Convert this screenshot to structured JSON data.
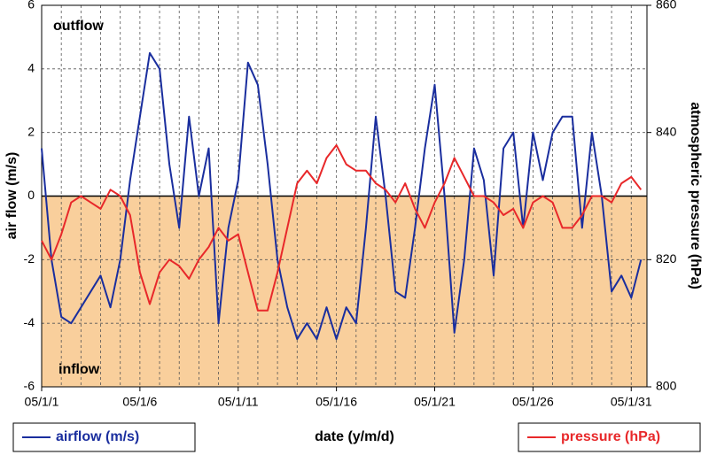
{
  "chart_data": {
    "type": "line",
    "x_label": "date (y/m/d)",
    "y_label": "air flow (m/s)",
    "y2_label": "atmospheric pressure (hPa)",
    "annotations": [
      "outflow",
      "inflow"
    ],
    "legend": "bottom",
    "grid": true,
    "shade_below_zero": "#f9cf9c",
    "xlim": [
      1,
      31.8
    ],
    "xticks": [
      {
        "value": 1,
        "label": "05/1/1"
      },
      {
        "value": 6,
        "label": "05/1/6"
      },
      {
        "value": 11,
        "label": "05/1/11"
      },
      {
        "value": 16,
        "label": "05/1/16"
      },
      {
        "value": 21,
        "label": "05/1/21"
      },
      {
        "value": 26,
        "label": "05/1/26"
      },
      {
        "value": 31,
        "label": "05/1/31"
      }
    ],
    "ylim": [
      -6,
      6
    ],
    "yticks": [
      -6,
      -4,
      -2,
      0,
      2,
      4,
      6
    ],
    "y2lim": [
      800,
      860
    ],
    "y2ticks": [
      800,
      820,
      840,
      860
    ],
    "x": [
      1,
      1.5,
      2,
      2.5,
      3,
      3.5,
      4,
      4.5,
      5,
      5.5,
      6,
      6.5,
      7,
      7.5,
      8,
      8.5,
      9,
      9.5,
      10,
      10.5,
      11,
      11.5,
      12,
      12.5,
      13,
      13.5,
      14,
      14.5,
      15,
      15.5,
      16,
      16.5,
      17,
      17.5,
      18,
      18.5,
      19,
      19.5,
      20,
      20.5,
      21,
      21.5,
      22,
      22.5,
      23,
      23.5,
      24,
      24.5,
      25,
      25.5,
      26,
      26.5,
      27,
      27.5,
      28,
      28.5,
      29,
      29.5,
      30,
      30.5,
      31,
      31.5
    ],
    "series": [
      {
        "name": "airflow (m/s)",
        "color": "#1a2e9e",
        "axis": "y",
        "values": [
          1.5,
          -2,
          -3.8,
          -4,
          -3.5,
          -3,
          -2.5,
          -3.5,
          -2,
          0.5,
          2.5,
          4.5,
          4,
          1,
          -1,
          2.5,
          0,
          1.5,
          -4,
          -1,
          0.5,
          4.2,
          3.5,
          1,
          -2,
          -3.5,
          -4.5,
          -4,
          -4.5,
          -3.5,
          -4.5,
          -3.5,
          -4,
          -1,
          2.5,
          0,
          -3,
          -3.2,
          -1,
          1.5,
          3.5,
          0,
          -4.3,
          -2,
          1.5,
          0.5,
          -2.5,
          1.5,
          2,
          -1,
          2,
          0.5,
          2,
          2.5,
          2.5,
          -1,
          2,
          0,
          -3,
          -2.5,
          -3.2,
          -2
        ]
      },
      {
        "name": "pressure (hPa)",
        "color": "#e8282a",
        "axis": "y2",
        "values": [
          823,
          820,
          824,
          829,
          830,
          829,
          828,
          831,
          830,
          827,
          818,
          813,
          818,
          820,
          819,
          817,
          820,
          822,
          825,
          823,
          824,
          818,
          812,
          812,
          818,
          825,
          832,
          834,
          832,
          836,
          838,
          835,
          834,
          834,
          832,
          831,
          829,
          832,
          828,
          825,
          829,
          832,
          836,
          833,
          830,
          830,
          829,
          827,
          828,
          825,
          829,
          830,
          829,
          825,
          825,
          827,
          830,
          830,
          829,
          832,
          833,
          831
        ]
      }
    ]
  }
}
